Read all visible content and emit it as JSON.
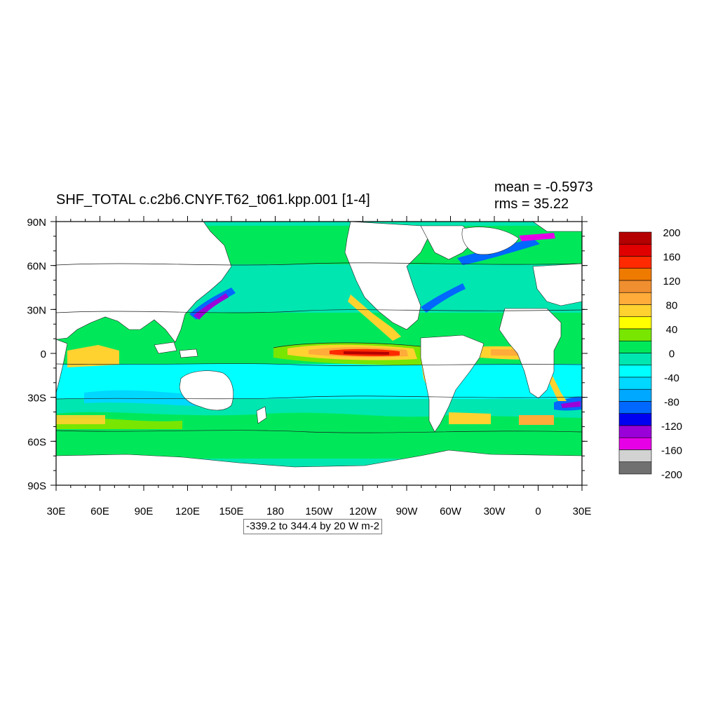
{
  "plot": {
    "title": "SHF_TOTAL c.c2b6.CNYF.T62_t061.kpp.001 [1-4]",
    "mean_text": "mean = -0.5973",
    "rms_text": "rms = 35.22",
    "range_text": "-339.2 to 344.4 by 20 W m-2"
  },
  "axes": {
    "lat_labels": [
      "90N",
      "60N",
      "30N",
      "0",
      "30S",
      "60S",
      "90S"
    ],
    "lon_labels": [
      "30E",
      "60E",
      "90E",
      "120E",
      "150E",
      "180",
      "150W",
      "120W",
      "90W",
      "60W",
      "30W",
      "0",
      "30E"
    ]
  },
  "colorbar": {
    "labels": [
      "200",
      "160",
      "120",
      "80",
      "40",
      "0",
      "-40",
      "-80",
      "-120",
      "-160",
      "-200"
    ],
    "colors": [
      "#b40000",
      "#e00000",
      "#ff2a00",
      "#ef7a00",
      "#f08f30",
      "#ffac3a",
      "#ffd230",
      "#ffff00",
      "#78e600",
      "#00e85a",
      "#00e6b0",
      "#00ffff",
      "#00d8ff",
      "#00a8ff",
      "#0068ff",
      "#0000f0",
      "#9a00d8",
      "#e600e6",
      "#d2d2d2",
      "#707070"
    ]
  }
}
